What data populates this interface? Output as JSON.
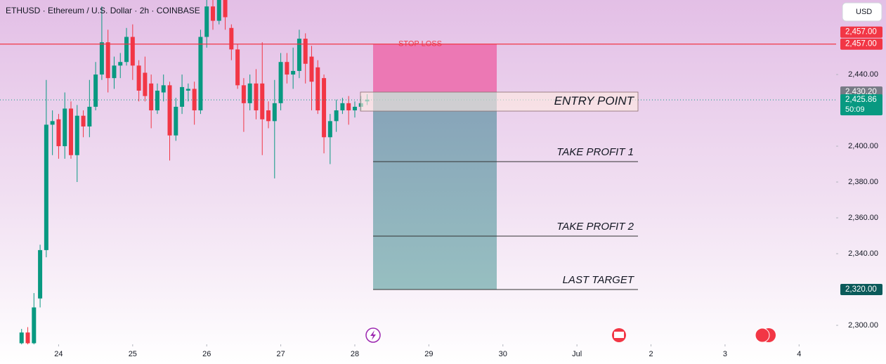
{
  "chart_data": {
    "type": "candlestick",
    "title": "ETHUSD · Ethereum / U.S. Dollar · 2h · COINBASE",
    "currency": "USD",
    "up_color": "#089981",
    "down_color": "#f23645",
    "x": [
      -12,
      -10,
      -8,
      -6,
      -4,
      -2,
      0,
      2,
      4,
      6,
      8,
      10,
      12,
      14,
      16,
      18,
      20,
      22,
      24,
      26,
      28,
      30,
      32,
      34,
      36,
      38,
      40,
      42,
      44,
      46,
      48,
      50,
      52,
      54,
      56,
      58,
      60,
      62,
      64,
      66,
      68,
      70,
      72,
      74,
      76,
      78,
      80,
      82,
      84,
      86,
      88,
      90,
      92,
      94,
      96,
      98,
      100
    ],
    "open": [
      2290,
      2296,
      2290,
      2315,
      2342,
      2412,
      2415,
      2400,
      2421,
      2395,
      2417,
      2411,
      2422,
      2440,
      2458,
      2438,
      2445,
      2447,
      2461,
      2445,
      2441,
      2435,
      2420,
      2430,
      2434,
      2406,
      2422,
      2431,
      2432,
      2420,
      2461,
      2478,
      2470,
      2482,
      2466,
      2454,
      2434,
      2424,
      2435,
      2435,
      2420,
      2414,
      2424,
      2447,
      2440,
      2442,
      2460,
      2450,
      2444,
      2438,
      2405,
      2414,
      2420,
      2424,
      2420,
      2422,
      2425
    ],
    "high": [
      2298,
      2299,
      2318,
      2345,
      2437,
      2420,
      2418,
      2430,
      2425,
      2423,
      2420,
      2437,
      2447,
      2478,
      2465,
      2450,
      2452,
      2466,
      2468,
      2448,
      2450,
      2440,
      2435,
      2440,
      2436,
      2427,
      2440,
      2435,
      2436,
      2465,
      2495,
      2490,
      2495,
      2490,
      2468,
      2457,
      2438,
      2440,
      2443,
      2458,
      2425,
      2437,
      2452,
      2452,
      2455,
      2465,
      2463,
      2456,
      2448,
      2440,
      2418,
      2426,
      2427,
      2428,
      2425,
      2428,
      2429
    ],
    "low": [
      2285,
      2288,
      2285,
      2310,
      2338,
      2395,
      2393,
      2393,
      2393,
      2380,
      2405,
      2405,
      2420,
      2437,
      2430,
      2432,
      2438,
      2445,
      2437,
      2425,
      2425,
      2410,
      2418,
      2425,
      2392,
      2403,
      2418,
      2425,
      2412,
      2418,
      2455,
      2465,
      2468,
      2465,
      2448,
      2432,
      2408,
      2420,
      2415,
      2395,
      2410,
      2382,
      2420,
      2435,
      2432,
      2438,
      2435,
      2420,
      2418,
      2396,
      2390,
      2408,
      2418,
      2412,
      2416,
      2420,
      2423
    ],
    "close": [
      2296,
      2290,
      2310,
      2342,
      2412,
      2414,
      2400,
      2421,
      2395,
      2417,
      2411,
      2422,
      2440,
      2458,
      2438,
      2445,
      2447,
      2461,
      2445,
      2431,
      2428,
      2420,
      2431,
      2434,
      2406,
      2422,
      2433,
      2432,
      2420,
      2461,
      2478,
      2470,
      2482,
      2472,
      2454,
      2434,
      2424,
      2435,
      2420,
      2415,
      2414,
      2424,
      2447,
      2440,
      2442,
      2460,
      2446,
      2436,
      2420,
      2405,
      2414,
      2420,
      2424,
      2420,
      2422,
      2424,
      2426
    ],
    "xlim": [
      -19,
      252
    ],
    "ylim": [
      2289.4,
      2481.6
    ],
    "xticks": [
      {
        "value": 0,
        "label": "24"
      },
      {
        "value": 24,
        "label": "25"
      },
      {
        "value": 48,
        "label": "26"
      },
      {
        "value": 72,
        "label": "27"
      },
      {
        "value": 96,
        "label": "28"
      },
      {
        "value": 120,
        "label": "29"
      },
      {
        "value": 144,
        "label": "30"
      },
      {
        "value": 168,
        "label": "Jul"
      },
      {
        "value": 192,
        "label": "2"
      },
      {
        "value": 216,
        "label": "3"
      },
      {
        "value": 240,
        "label": "4"
      }
    ],
    "yticks": [
      {
        "value": 2440,
        "label": "2,440.00"
      },
      {
        "value": 2400,
        "label": "2,400.00"
      },
      {
        "value": 2380,
        "label": "2,380.00"
      },
      {
        "value": 2360,
        "label": "2,360.00"
      },
      {
        "value": 2340,
        "label": "2,340.00"
      },
      {
        "value": 2300,
        "label": "2,300.00"
      }
    ],
    "stop_loss": {
      "value": 2457,
      "label": "STOP LOSS"
    },
    "entry": {
      "from": 2430.2,
      "to": 2419.6,
      "label": "ENTRY POINT"
    },
    "targets": [
      {
        "value": 2391.4,
        "label": "TAKE PROFIT 1"
      },
      {
        "value": 2349.8,
        "label": "TAKE PROFIT 2"
      },
      {
        "value": 2320,
        "label": "LAST TARGET"
      }
    ],
    "current_price": 2425.86,
    "price_tags": [
      {
        "value": 2457,
        "label": "2,457.00",
        "color": "#f23645"
      },
      {
        "value": 2457,
        "label": "2,457.00",
        "color": "#f23645"
      },
      {
        "value": 2430.2,
        "label": "2,430.20",
        "color": "#787b86"
      },
      {
        "value": 2425.86,
        "label": "2,425.86",
        "note": "50:09",
        "color": "#089981"
      },
      {
        "value": 2320,
        "label": "2,320.00",
        "color": "#0b5a5a"
      }
    ]
  }
}
